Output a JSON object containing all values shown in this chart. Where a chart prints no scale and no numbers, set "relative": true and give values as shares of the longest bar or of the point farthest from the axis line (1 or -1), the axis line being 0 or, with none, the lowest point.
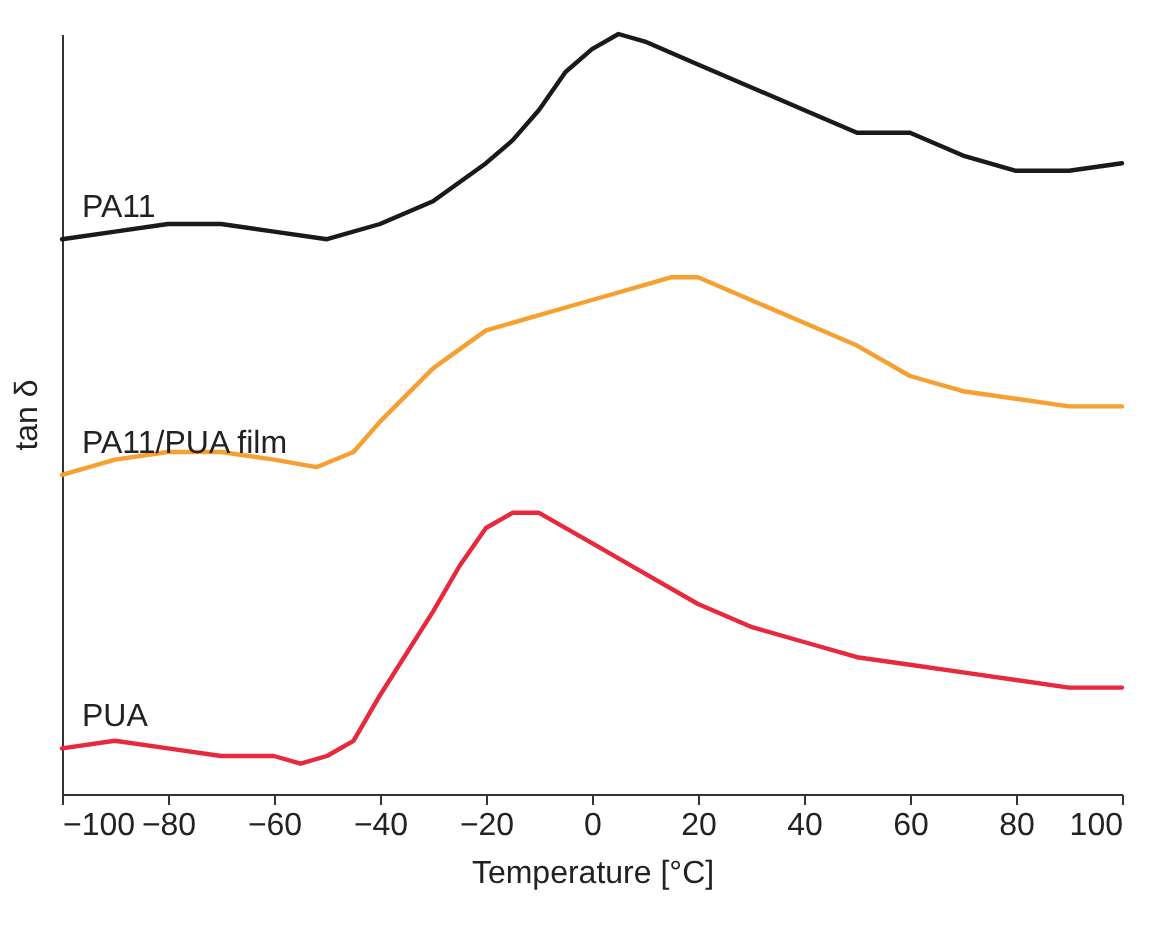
{
  "chart_data": {
    "type": "line",
    "relative": true,
    "xlabel": "Temperature [°C]",
    "ylabel": "tan δ",
    "xlim": [
      -100,
      100
    ],
    "xticks": [
      -100,
      -80,
      -60,
      -40,
      -20,
      0,
      20,
      40,
      60,
      80,
      100
    ],
    "grid": false,
    "legend": false,
    "marker": "none",
    "line_style": "solid",
    "series": [
      {
        "name": "PA11",
        "color": "#1a1a1a",
        "x": [
          -100,
          -90,
          -80,
          -70,
          -60,
          -50,
          -40,
          -30,
          -20,
          -15,
          -10,
          -5,
          0,
          5,
          10,
          20,
          30,
          40,
          50,
          60,
          70,
          80,
          90,
          100
        ],
        "values": [
          0.73,
          0.74,
          0.75,
          0.75,
          0.74,
          0.73,
          0.75,
          0.78,
          0.83,
          0.86,
          0.9,
          0.95,
          0.98,
          1,
          0.99,
          0.96,
          0.93,
          0.9,
          0.87,
          0.87,
          0.84,
          0.82,
          0.82,
          0.83
        ]
      },
      {
        "name": "PA11/PUA film",
        "color": "#f5a030",
        "x": [
          -100,
          -90,
          -80,
          -70,
          -60,
          -52,
          -45,
          -40,
          -30,
          -20,
          -10,
          0,
          10,
          15,
          20,
          30,
          40,
          50,
          60,
          70,
          80,
          90,
          100
        ],
        "values": [
          0.42,
          0.44,
          0.45,
          0.45,
          0.44,
          0.43,
          0.45,
          0.49,
          0.56,
          0.61,
          0.63,
          0.65,
          0.67,
          0.68,
          0.68,
          0.65,
          0.62,
          0.59,
          0.55,
          0.53,
          0.52,
          0.51,
          0.51
        ]
      },
      {
        "name": "PUA",
        "color": "#e8283c",
        "x": [
          -100,
          -90,
          -80,
          -70,
          -60,
          -55,
          -50,
          -45,
          -40,
          -30,
          -25,
          -20,
          -15,
          -10,
          0,
          10,
          20,
          30,
          40,
          50,
          60,
          70,
          80,
          90,
          100
        ],
        "values": [
          0.06,
          0.07,
          0.06,
          0.05,
          0.05,
          0.04,
          0.05,
          0.07,
          0.13,
          0.24,
          0.3,
          0.35,
          0.37,
          0.37,
          0.33,
          0.29,
          0.25,
          0.22,
          0.2,
          0.18,
          0.17,
          0.16,
          0.15,
          0.14,
          0.14
        ]
      }
    ]
  }
}
